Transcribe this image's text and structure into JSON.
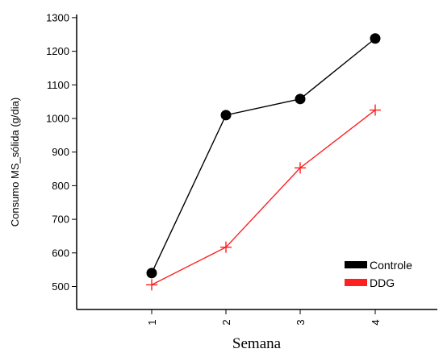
{
  "chart_data": {
    "type": "line",
    "x": [
      1,
      2,
      3,
      4
    ],
    "categories": [
      "1",
      "2",
      "3",
      "4"
    ],
    "xlabel": "Semana",
    "ylabel": "Consumo MS_sólida (g/dia)",
    "ylim": [
      460,
      1310
    ],
    "yticks": [
      500,
      600,
      700,
      800,
      900,
      1000,
      1100,
      1200,
      1300
    ],
    "grid": false,
    "legend": "bottom-right",
    "series": [
      {
        "name": "Controle",
        "values": [
          540,
          1010,
          1058,
          1238
        ],
        "color": "#000000",
        "marker": "circle"
      },
      {
        "name": "DDG",
        "values": [
          505,
          617,
          853,
          1025
        ],
        "color": "#ff2020",
        "marker": "plus"
      }
    ]
  }
}
